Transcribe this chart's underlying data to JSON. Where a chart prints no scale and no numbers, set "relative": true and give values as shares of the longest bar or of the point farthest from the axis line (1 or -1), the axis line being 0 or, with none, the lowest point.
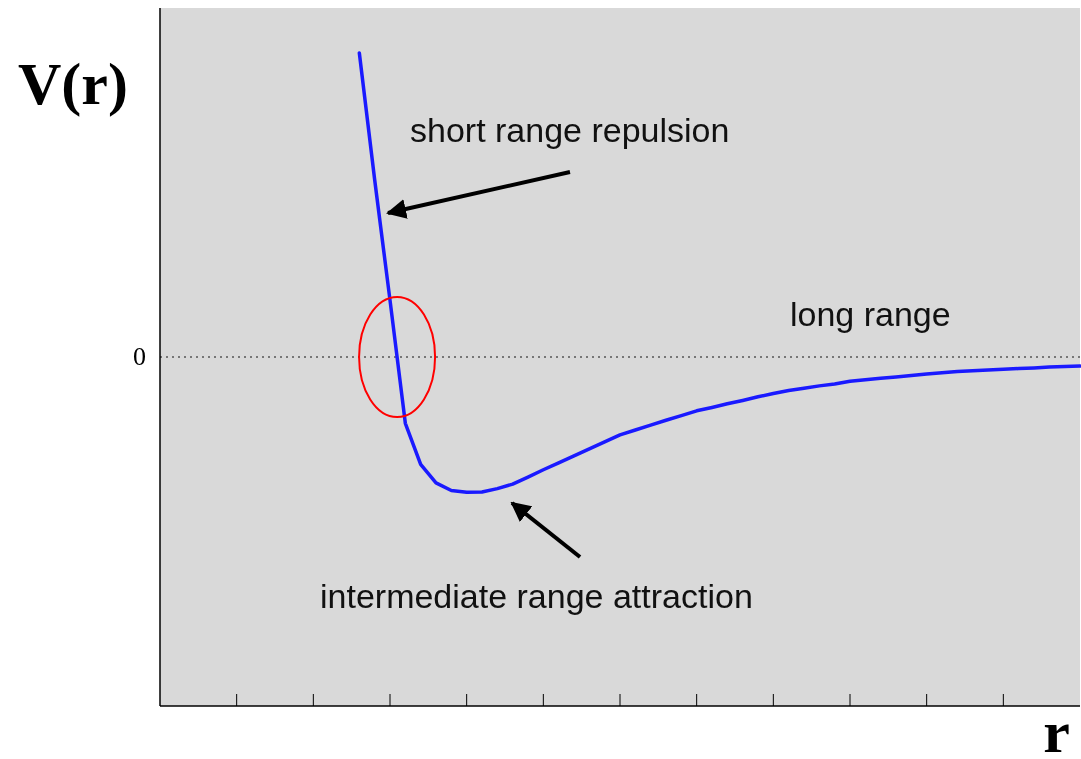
{
  "chart_data": {
    "type": "line",
    "relative": true,
    "ylabel": "V(r)",
    "xlabel": "r",
    "categories": [
      null,
      null,
      null,
      null,
      null,
      null,
      null,
      null,
      null,
      null,
      null,
      null,
      null,
      null,
      null,
      null,
      null,
      null,
      null,
      null,
      null,
      null,
      null,
      null,
      null,
      null,
      null,
      null,
      null,
      null,
      null,
      null,
      null,
      null,
      null,
      null,
      null,
      null,
      null,
      null,
      null,
      null,
      null,
      null,
      null,
      null,
      null,
      null,
      null,
      null,
      null,
      null,
      null,
      null,
      null,
      null,
      null,
      null,
      null,
      null,
      null
    ],
    "series": [
      {
        "color": "#1a1aff",
        "values": [
          null,
          null,
          null,
          null,
          null,
          null,
          null,
          null,
          null,
          null,
          null,
          null,
          null,
          1,
          0.583,
          0.187,
          -0.218,
          -0.353,
          -0.414,
          -0.439,
          -0.445,
          -0.444,
          -0.433,
          -0.418,
          -0.395,
          -0.371,
          -0.348,
          -0.325,
          -0.302,
          -0.279,
          -0.256,
          -0.24,
          -0.224,
          -0.208,
          -0.193,
          -0.177,
          -0.166,
          -0.154,
          -0.143,
          -0.131,
          -0.12,
          -0.11,
          -0.103,
          -0.095,
          -0.089,
          -0.08,
          -0.075,
          -0.07,
          -0.066,
          -0.061,
          -0.056,
          -0.052,
          -0.048,
          -0.045,
          -0.043,
          -0.04,
          -0.038,
          -0.036,
          -0.033,
          -0.031,
          -0.03
        ]
      }
    ],
    "ref_lines": [
      {
        "axis": "y",
        "value": 0,
        "label": "0",
        "line_style": "dotted",
        "color": "#555555"
      }
    ],
    "annotations": [
      "short range repulsion",
      "intermediate range attraction",
      "long range"
    ],
    "grid": false,
    "marker": "none",
    "line_style": "solid"
  }
}
